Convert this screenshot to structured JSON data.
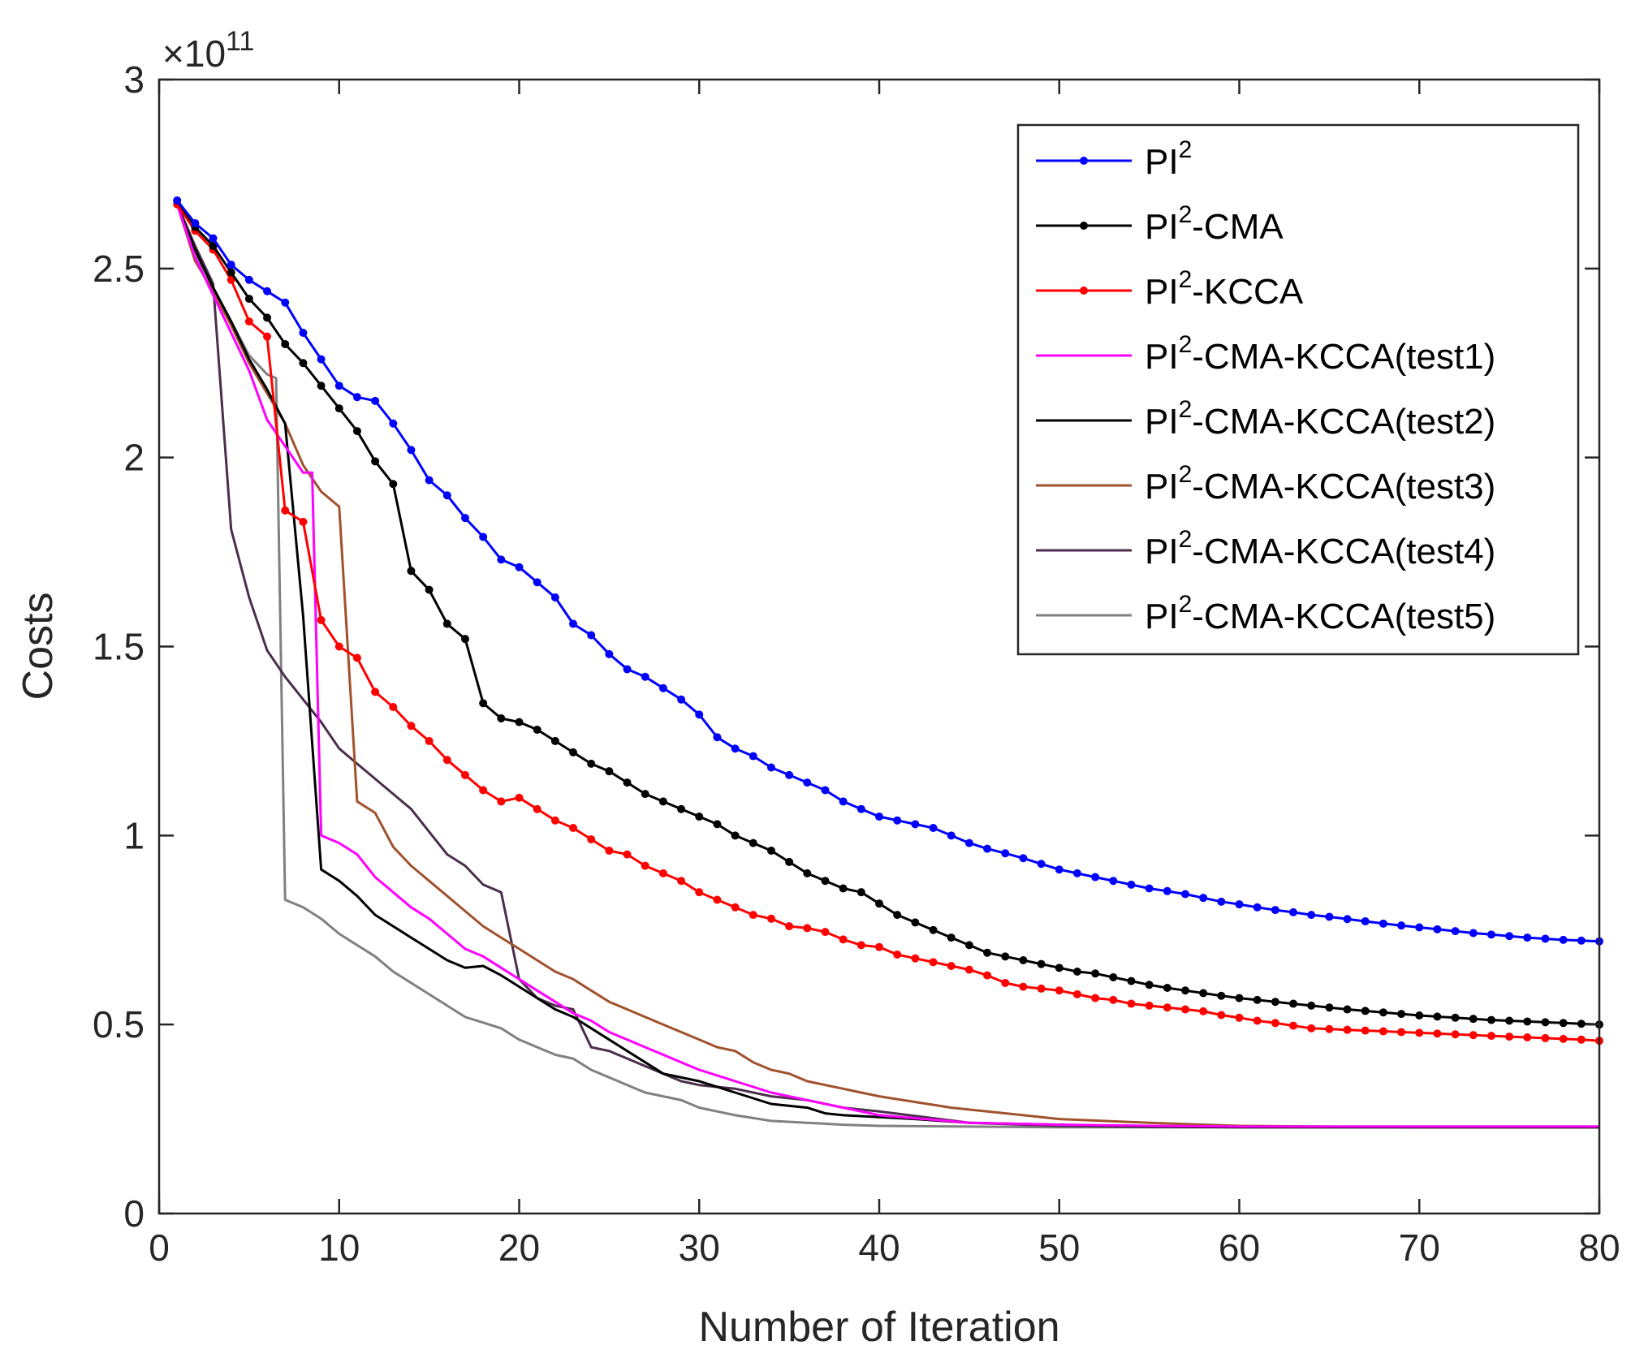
{
  "chart_data": {
    "type": "line",
    "xlabel": "Number of Iteration",
    "ylabel": "Costs",
    "y_multiplier": "×10",
    "y_exponent": "11",
    "xlim": [
      0,
      80
    ],
    "ylim": [
      0,
      3
    ],
    "xticks": [
      "0",
      "10",
      "20",
      "30",
      "40",
      "50",
      "60",
      "70",
      "80"
    ],
    "yticks": [
      "0",
      "0.5",
      "1",
      "1.5",
      "2",
      "2.5",
      "3"
    ],
    "legend_position": "top-right",
    "series": [
      {
        "name_base": "PI",
        "name_sup": "2",
        "name_suffix": "",
        "color": "#0000ff",
        "markers": true,
        "x": [
          1,
          2,
          3,
          4,
          5,
          6,
          7,
          8,
          9,
          10,
          11,
          12,
          13,
          14,
          15,
          16,
          17,
          18,
          19,
          20,
          21,
          22,
          23,
          24,
          25,
          26,
          27,
          28,
          29,
          30,
          31,
          32,
          33,
          34,
          35,
          36,
          37,
          38,
          39,
          40,
          41,
          42,
          43,
          44,
          45,
          46,
          47,
          48,
          49,
          50,
          51,
          52,
          53,
          54,
          55,
          56,
          57,
          58,
          59,
          60,
          61,
          62,
          63,
          64,
          65,
          66,
          67,
          68,
          69,
          70,
          71,
          72,
          73,
          74,
          75,
          76,
          77,
          78,
          79,
          80
        ],
        "y": [
          2.68,
          2.62,
          2.58,
          2.51,
          2.47,
          2.44,
          2.41,
          2.33,
          2.26,
          2.19,
          2.16,
          2.15,
          2.09,
          2.02,
          1.94,
          1.9,
          1.84,
          1.79,
          1.73,
          1.71,
          1.67,
          1.63,
          1.56,
          1.53,
          1.48,
          1.44,
          1.42,
          1.39,
          1.36,
          1.32,
          1.26,
          1.23,
          1.21,
          1.18,
          1.16,
          1.14,
          1.12,
          1.09,
          1.07,
          1.05,
          1.04,
          1.03,
          1.02,
          1.0,
          0.98,
          0.965,
          0.953,
          0.94,
          0.925,
          0.91,
          0.9,
          0.89,
          0.88,
          0.87,
          0.86,
          0.853,
          0.845,
          0.835,
          0.825,
          0.818,
          0.81,
          0.803,
          0.797,
          0.79,
          0.785,
          0.779,
          0.773,
          0.767,
          0.762,
          0.757,
          0.752,
          0.747,
          0.742,
          0.738,
          0.734,
          0.73,
          0.727,
          0.724,
          0.722,
          0.72
        ]
      },
      {
        "name_base": "PI",
        "name_sup": "2",
        "name_suffix": "-CMA",
        "color": "#000000",
        "markers": true,
        "x": [
          1,
          2,
          3,
          4,
          5,
          6,
          7,
          8,
          9,
          10,
          11,
          12,
          13,
          14,
          15,
          16,
          17,
          18,
          19,
          20,
          21,
          22,
          23,
          24,
          25,
          26,
          27,
          28,
          29,
          30,
          31,
          32,
          33,
          34,
          35,
          36,
          37,
          38,
          39,
          40,
          41,
          42,
          43,
          44,
          45,
          46,
          47,
          48,
          49,
          50,
          51,
          52,
          53,
          54,
          55,
          56,
          57,
          58,
          59,
          60,
          61,
          62,
          63,
          64,
          65,
          66,
          67,
          68,
          69,
          70,
          71,
          72,
          73,
          74,
          75,
          76,
          77,
          78,
          79,
          80
        ],
        "y": [
          2.68,
          2.61,
          2.56,
          2.49,
          2.42,
          2.37,
          2.3,
          2.25,
          2.19,
          2.13,
          2.07,
          1.99,
          1.93,
          1.7,
          1.65,
          1.56,
          1.52,
          1.35,
          1.31,
          1.3,
          1.28,
          1.25,
          1.22,
          1.19,
          1.17,
          1.14,
          1.11,
          1.09,
          1.07,
          1.05,
          1.03,
          1.0,
          0.98,
          0.96,
          0.93,
          0.9,
          0.88,
          0.86,
          0.85,
          0.82,
          0.79,
          0.77,
          0.75,
          0.73,
          0.71,
          0.69,
          0.68,
          0.67,
          0.66,
          0.65,
          0.64,
          0.635,
          0.625,
          0.615,
          0.605,
          0.597,
          0.59,
          0.583,
          0.576,
          0.57,
          0.565,
          0.56,
          0.555,
          0.55,
          0.545,
          0.54,
          0.536,
          0.532,
          0.528,
          0.524,
          0.521,
          0.518,
          0.515,
          0.512,
          0.51,
          0.508,
          0.506,
          0.504,
          0.502,
          0.5
        ]
      },
      {
        "name_base": "PI",
        "name_sup": "2",
        "name_suffix": "-KCCA",
        "color": "#ff0000",
        "markers": true,
        "x": [
          1,
          2,
          3,
          4,
          5,
          6,
          7,
          8,
          9,
          10,
          11,
          12,
          13,
          14,
          15,
          16,
          17,
          18,
          19,
          20,
          21,
          22,
          23,
          24,
          25,
          26,
          27,
          28,
          29,
          30,
          31,
          32,
          33,
          34,
          35,
          36,
          37,
          38,
          39,
          40,
          41,
          42,
          43,
          44,
          45,
          46,
          47,
          48,
          49,
          50,
          51,
          52,
          53,
          54,
          55,
          56,
          57,
          58,
          59,
          60,
          61,
          62,
          63,
          64,
          65,
          66,
          67,
          68,
          69,
          70,
          71,
          72,
          73,
          74,
          75,
          76,
          77,
          78,
          79,
          80
        ],
        "y": [
          2.67,
          2.6,
          2.55,
          2.47,
          2.36,
          2.32,
          1.86,
          1.83,
          1.57,
          1.5,
          1.47,
          1.38,
          1.34,
          1.29,
          1.25,
          1.2,
          1.16,
          1.12,
          1.09,
          1.1,
          1.07,
          1.04,
          1.02,
          0.99,
          0.96,
          0.95,
          0.92,
          0.9,
          0.88,
          0.85,
          0.83,
          0.81,
          0.79,
          0.78,
          0.76,
          0.755,
          0.745,
          0.725,
          0.71,
          0.705,
          0.685,
          0.675,
          0.665,
          0.655,
          0.645,
          0.63,
          0.61,
          0.6,
          0.595,
          0.59,
          0.58,
          0.57,
          0.565,
          0.555,
          0.55,
          0.545,
          0.54,
          0.535,
          0.525,
          0.518,
          0.51,
          0.504,
          0.497,
          0.49,
          0.488,
          0.486,
          0.484,
          0.482,
          0.48,
          0.478,
          0.476,
          0.474,
          0.472,
          0.47,
          0.468,
          0.466,
          0.464,
          0.462,
          0.46,
          0.457
        ]
      },
      {
        "name_base": "PI",
        "name_sup": "2",
        "name_suffix": "-CMA-KCCA(test1)",
        "color": "#ff00ff",
        "markers": false,
        "x": [
          1,
          2,
          3,
          4,
          5,
          6,
          7,
          8,
          8.5,
          9,
          10,
          11,
          12,
          13,
          14,
          15,
          16,
          17,
          18,
          19,
          20,
          21,
          22,
          23,
          24,
          25,
          26,
          27,
          28,
          29,
          30,
          32,
          34,
          36,
          38,
          40,
          45,
          50,
          55,
          60,
          65,
          70,
          75,
          80
        ],
        "y": [
          2.67,
          2.53,
          2.43,
          2.33,
          2.23,
          2.1,
          2.03,
          1.96,
          1.96,
          1.0,
          0.98,
          0.95,
          0.89,
          0.85,
          0.81,
          0.78,
          0.74,
          0.7,
          0.68,
          0.65,
          0.62,
          0.59,
          0.56,
          0.53,
          0.51,
          0.48,
          0.46,
          0.44,
          0.42,
          0.4,
          0.38,
          0.35,
          0.32,
          0.3,
          0.28,
          0.26,
          0.24,
          0.235,
          0.232,
          0.23,
          0.23,
          0.23,
          0.23,
          0.23
        ]
      },
      {
        "name_base": "PI",
        "name_sup": "2",
        "name_suffix": "-CMA-KCCA(test2)",
        "color": "#000000",
        "markers": false,
        "x": [
          1,
          2,
          3,
          4,
          5,
          6,
          7,
          8,
          9,
          10,
          11,
          12,
          13,
          14,
          15,
          16,
          17,
          18,
          19,
          20,
          21,
          22,
          23,
          24,
          25,
          26,
          27,
          28,
          29,
          30,
          32,
          34,
          36,
          37,
          38,
          40,
          42,
          45,
          50,
          55,
          60,
          65,
          70,
          75,
          80
        ],
        "y": [
          2.67,
          2.55,
          2.45,
          2.36,
          2.26,
          2.18,
          2.09,
          1.58,
          0.91,
          0.88,
          0.84,
          0.79,
          0.76,
          0.73,
          0.7,
          0.67,
          0.65,
          0.655,
          0.63,
          0.6,
          0.57,
          0.54,
          0.52,
          0.49,
          0.46,
          0.43,
          0.4,
          0.37,
          0.36,
          0.35,
          0.32,
          0.29,
          0.28,
          0.265,
          0.26,
          0.255,
          0.25,
          0.24,
          0.235,
          0.23,
          0.228,
          0.228,
          0.228,
          0.228,
          0.228
        ]
      },
      {
        "name_base": "PI",
        "name_sup": "2",
        "name_suffix": "-CMA-KCCA(test3)",
        "color": "#a0522d",
        "markers": false,
        "x": [
          1,
          2,
          3,
          4,
          5,
          6,
          7,
          8,
          9,
          10,
          11,
          12,
          13,
          14,
          15,
          16,
          17,
          18,
          19,
          20,
          21,
          22,
          23,
          24,
          25,
          26,
          27,
          28,
          29,
          30,
          31,
          32,
          33,
          34,
          35,
          36,
          37,
          38,
          39,
          40,
          42,
          44,
          46,
          48,
          50,
          55,
          60,
          65,
          70,
          75,
          80
        ],
        "y": [
          2.67,
          2.52,
          2.44,
          2.35,
          2.25,
          2.17,
          2.09,
          1.98,
          1.91,
          1.87,
          1.09,
          1.06,
          0.97,
          0.92,
          0.88,
          0.84,
          0.8,
          0.76,
          0.73,
          0.7,
          0.67,
          0.64,
          0.62,
          0.59,
          0.56,
          0.54,
          0.52,
          0.5,
          0.48,
          0.46,
          0.44,
          0.43,
          0.4,
          0.38,
          0.37,
          0.35,
          0.34,
          0.33,
          0.32,
          0.31,
          0.295,
          0.28,
          0.27,
          0.26,
          0.25,
          0.24,
          0.232,
          0.23,
          0.228,
          0.228,
          0.228
        ]
      },
      {
        "name_base": "PI",
        "name_sup": "2",
        "name_suffix": "-CMA-KCCA(test4)",
        "color": "#4b2e4b",
        "markers": false,
        "x": [
          1,
          2,
          3,
          4,
          5,
          6,
          7,
          8,
          9,
          10,
          11,
          12,
          13,
          14,
          15,
          16,
          17,
          18,
          19,
          20,
          21,
          22,
          23,
          24,
          25,
          26,
          27,
          28,
          29,
          30,
          32,
          34,
          36,
          38,
          40,
          45,
          50,
          55,
          60,
          65,
          70,
          75,
          80
        ],
        "y": [
          2.67,
          2.56,
          2.46,
          1.81,
          1.63,
          1.49,
          1.42,
          1.36,
          1.3,
          1.23,
          1.19,
          1.15,
          1.11,
          1.07,
          1.01,
          0.95,
          0.92,
          0.87,
          0.85,
          0.62,
          0.57,
          0.55,
          0.54,
          0.44,
          0.43,
          0.41,
          0.39,
          0.37,
          0.35,
          0.34,
          0.33,
          0.31,
          0.3,
          0.28,
          0.27,
          0.24,
          0.232,
          0.23,
          0.23,
          0.23,
          0.23,
          0.23,
          0.23
        ]
      },
      {
        "name_base": "PI",
        "name_sup": "2",
        "name_suffix": "-CMA-KCCA(test5)",
        "color": "#808080",
        "markers": false,
        "x": [
          1,
          2,
          3,
          4,
          5,
          6,
          6.5,
          7,
          8,
          9,
          10,
          11,
          12,
          13,
          14,
          15,
          16,
          17,
          18,
          19,
          20,
          21,
          22,
          23,
          24,
          25,
          26,
          27,
          28,
          29,
          30,
          32,
          34,
          36,
          38,
          40,
          45,
          50,
          55,
          60,
          65,
          70,
          75,
          80
        ],
        "y": [
          2.67,
          2.54,
          2.45,
          2.36,
          2.27,
          2.22,
          2.21,
          0.83,
          0.81,
          0.78,
          0.74,
          0.71,
          0.68,
          0.64,
          0.61,
          0.58,
          0.55,
          0.52,
          0.505,
          0.49,
          0.46,
          0.44,
          0.42,
          0.41,
          0.38,
          0.36,
          0.34,
          0.32,
          0.31,
          0.3,
          0.28,
          0.26,
          0.245,
          0.24,
          0.235,
          0.232,
          0.23,
          0.228,
          0.228,
          0.228,
          0.228,
          0.228,
          0.228,
          0.228
        ]
      }
    ]
  }
}
